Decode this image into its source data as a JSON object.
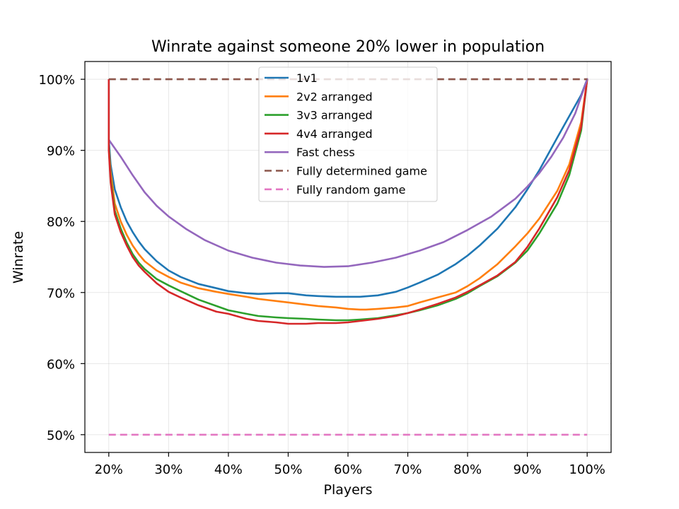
{
  "chart_data": {
    "type": "line",
    "title": "Winrate against someone 20% lower in population",
    "xlabel": "Players",
    "ylabel": "Winrate",
    "xlim": [
      16,
      104.0
    ],
    "ylim": [
      47.5,
      102.5
    ],
    "x_ticks": [
      20,
      30,
      40,
      50,
      60,
      70,
      80,
      90,
      100
    ],
    "x_tick_labels": [
      "20%",
      "30%",
      "40%",
      "50%",
      "60%",
      "70%",
      "80%",
      "90%",
      "100%"
    ],
    "y_ticks": [
      50,
      60,
      70,
      80,
      90,
      100
    ],
    "y_tick_labels": [
      "50%",
      "60%",
      "70%",
      "80%",
      "90%",
      "100%"
    ],
    "grid": true,
    "legend_position": "top-center",
    "series": [
      {
        "name": "1v1",
        "color": "#1f77b4",
        "style": "solid",
        "x": [
          20,
          20.3,
          21,
          22,
          23,
          24,
          25,
          26,
          28,
          30,
          32,
          35,
          38,
          40,
          43,
          45,
          48,
          50,
          53,
          55,
          58,
          60,
          62,
          65,
          68,
          70,
          72,
          75,
          78,
          80,
          82,
          85,
          88,
          90,
          92,
          95,
          97,
          99,
          100
        ],
        "y": [
          91.5,
          88,
          84.5,
          82,
          80,
          78.5,
          77.2,
          76.1,
          74.4,
          73.1,
          72.2,
          71.2,
          70.6,
          70.2,
          69.9,
          69.8,
          69.9,
          69.9,
          69.6,
          69.5,
          69.4,
          69.4,
          69.4,
          69.6,
          70.1,
          70.7,
          71.4,
          72.5,
          74,
          75.2,
          76.6,
          79,
          82,
          84.5,
          87.2,
          91.8,
          94.8,
          97.8,
          100
        ]
      },
      {
        "name": "2v2 arranged",
        "color": "#ff7f0e",
        "style": "solid",
        "x": [
          20,
          20.3,
          21,
          22,
          23,
          24,
          25,
          26,
          28,
          30,
          32,
          35,
          38,
          40,
          43,
          45,
          48,
          50,
          53,
          55,
          58,
          60,
          62,
          63,
          65,
          68,
          70,
          72,
          75,
          78,
          80,
          82,
          85,
          88,
          90,
          92,
          95,
          97,
          99,
          100
        ],
        "y": [
          90.5,
          87,
          82.5,
          80,
          78.1,
          76.6,
          75.4,
          74.4,
          73.1,
          72.2,
          71.4,
          70.6,
          70.1,
          69.8,
          69.4,
          69.1,
          68.8,
          68.6,
          68.3,
          68.1,
          67.9,
          67.7,
          67.6,
          67.6,
          67.7,
          67.9,
          68.1,
          68.6,
          69.3,
          70,
          70.9,
          72,
          74,
          76.5,
          78.3,
          80.4,
          84.3,
          88,
          94,
          100
        ]
      },
      {
        "name": "3v3 arranged",
        "color": "#2ca02c",
        "style": "solid",
        "x": [
          20,
          20.3,
          21,
          22,
          23,
          24,
          25,
          26,
          28,
          30,
          32,
          35,
          38,
          40,
          43,
          45,
          48,
          50,
          53,
          55,
          58,
          60,
          62,
          65,
          68,
          70,
          72,
          75,
          78,
          80,
          82,
          85,
          88,
          90,
          92,
          95,
          97,
          99,
          100
        ],
        "y": [
          90.5,
          86,
          81.5,
          79,
          77,
          75.4,
          74.2,
          73.3,
          71.9,
          71,
          70.2,
          69,
          68.1,
          67.5,
          67,
          66.7,
          66.5,
          66.4,
          66.3,
          66.2,
          66.1,
          66.1,
          66.2,
          66.4,
          66.8,
          67.1,
          67.5,
          68.2,
          69.1,
          69.9,
          70.9,
          72.3,
          74.2,
          75.9,
          78.3,
          82.5,
          86.5,
          92.8,
          100
        ]
      },
      {
        "name": "4v4 arranged",
        "color": "#d62728",
        "style": "solid",
        "x": [
          20,
          20.3,
          21,
          22,
          23,
          24,
          25,
          26,
          28,
          30,
          32,
          35,
          38,
          40,
          43,
          45,
          48,
          50,
          53,
          55,
          58,
          60,
          62,
          65,
          68,
          70,
          72,
          75,
          78,
          80,
          82,
          85,
          88,
          90,
          92,
          95,
          97,
          99,
          100
        ],
        "y": [
          90,
          85.5,
          81,
          78.5,
          76.6,
          75,
          73.8,
          72.9,
          71.3,
          70.1,
          69.3,
          68.2,
          67.3,
          67,
          66.3,
          66,
          65.8,
          65.6,
          65.6,
          65.7,
          65.7,
          65.8,
          66,
          66.3,
          66.7,
          67.1,
          67.6,
          68.4,
          69.3,
          70.1,
          71,
          72.4,
          74.3,
          76.4,
          79,
          83.4,
          87.2,
          93.3,
          100
        ]
      },
      {
        "name": "Fast chess",
        "color": "#9467bd",
        "style": "solid",
        "x": [
          20,
          22,
          24,
          26,
          28,
          30,
          33,
          36,
          40,
          44,
          48,
          52,
          56,
          60,
          64,
          68,
          72,
          76,
          80,
          84,
          88,
          90,
          92,
          94,
          96,
          98,
          100
        ],
        "y": [
          91.5,
          89.1,
          86.5,
          84.1,
          82.2,
          80.7,
          78.9,
          77.4,
          75.9,
          74.9,
          74.2,
          73.8,
          73.6,
          73.7,
          74.2,
          74.9,
          75.9,
          77.1,
          78.8,
          80.7,
          83.2,
          84.9,
          86.8,
          89.1,
          91.8,
          95.2,
          100
        ]
      },
      {
        "name": "Fully determined game",
        "color": "#8c564b",
        "style": "dashed",
        "x": [
          20,
          100
        ],
        "y": [
          100,
          100
        ]
      },
      {
        "name": "Fully random game",
        "color": "#e377c2",
        "style": "dashed",
        "x": [
          20,
          100
        ],
        "y": [
          50,
          50
        ]
      }
    ],
    "spikes": [
      {
        "series": "1v1",
        "x": 20,
        "y_from": 91.5,
        "y_to": 100
      },
      {
        "series": "4v4 arranged",
        "x": 20,
        "y_from": 90,
        "y_to": 100
      }
    ]
  }
}
